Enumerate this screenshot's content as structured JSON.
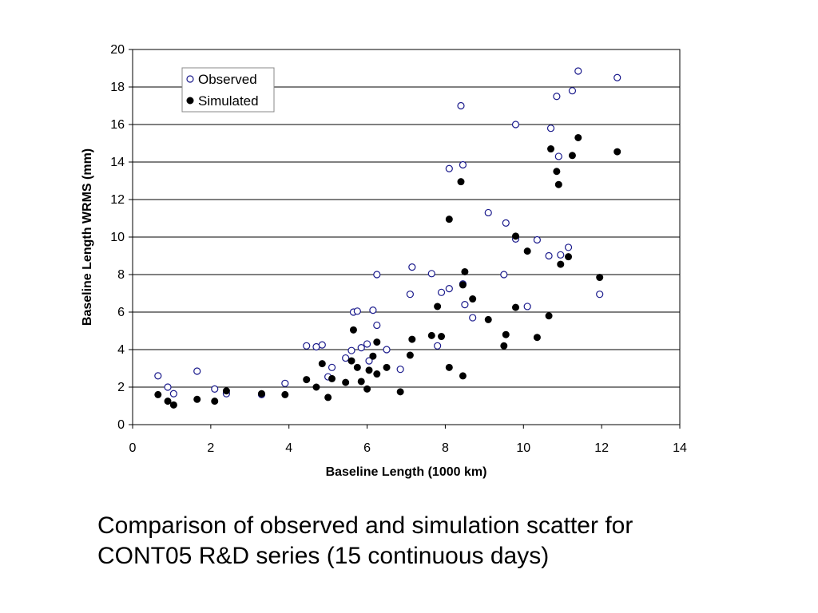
{
  "caption": {
    "line1": "Comparison of observed and simulation scatter for",
    "line2": "CONT05 R&D series (15 continuous days)"
  },
  "colors": {
    "observed": "#1a1a8c",
    "simulated": "#000000",
    "grid": "#000000"
  },
  "chart_data": {
    "type": "scatter",
    "title": "",
    "xlabel": "Baseline Length (1000 km)",
    "ylabel": "Baseline Length WRMS (mm)",
    "xlim": [
      0,
      14
    ],
    "ylim": [
      0,
      20
    ],
    "xticks": [
      0,
      2,
      4,
      6,
      8,
      10,
      12,
      14
    ],
    "yticks": [
      0,
      2,
      4,
      6,
      8,
      10,
      12,
      14,
      16,
      18,
      20
    ],
    "grid": "horizontal",
    "legend": "top-left",
    "series": [
      {
        "name": "Observed",
        "marker": "open-circle",
        "points": [
          [
            0.65,
            2.6
          ],
          [
            0.9,
            2.0
          ],
          [
            1.05,
            1.65
          ],
          [
            1.65,
            2.85
          ],
          [
            2.1,
            1.9
          ],
          [
            2.4,
            1.65
          ],
          [
            3.3,
            1.6
          ],
          [
            3.9,
            2.2
          ],
          [
            4.45,
            4.2
          ],
          [
            4.7,
            4.15
          ],
          [
            4.85,
            4.25
          ],
          [
            5.0,
            2.55
          ],
          [
            5.1,
            3.05
          ],
          [
            5.45,
            3.55
          ],
          [
            5.6,
            3.95
          ],
          [
            5.65,
            6.0
          ],
          [
            5.75,
            6.05
          ],
          [
            5.85,
            4.1
          ],
          [
            6.0,
            4.3
          ],
          [
            6.05,
            3.4
          ],
          [
            6.15,
            6.1
          ],
          [
            6.25,
            8.0
          ],
          [
            6.25,
            5.3
          ],
          [
            6.5,
            4.0
          ],
          [
            6.85,
            2.95
          ],
          [
            7.1,
            6.95
          ],
          [
            7.15,
            8.4
          ],
          [
            7.65,
            8.05
          ],
          [
            7.8,
            4.2
          ],
          [
            7.9,
            7.05
          ],
          [
            8.1,
            7.25
          ],
          [
            8.1,
            13.65
          ],
          [
            8.4,
            17.0
          ],
          [
            8.45,
            13.85
          ],
          [
            8.45,
            7.5
          ],
          [
            8.5,
            6.4
          ],
          [
            8.7,
            5.7
          ],
          [
            9.1,
            11.3
          ],
          [
            9.5,
            8.0
          ],
          [
            9.55,
            10.75
          ],
          [
            9.8,
            9.9
          ],
          [
            9.8,
            16.0
          ],
          [
            10.1,
            6.3
          ],
          [
            10.35,
            9.85
          ],
          [
            10.65,
            9.0
          ],
          [
            10.7,
            15.8
          ],
          [
            10.85,
            17.5
          ],
          [
            10.9,
            14.3
          ],
          [
            10.95,
            9.05
          ],
          [
            11.15,
            9.45
          ],
          [
            11.25,
            17.8
          ],
          [
            11.4,
            18.85
          ],
          [
            11.95,
            6.95
          ],
          [
            12.4,
            18.5
          ]
        ]
      },
      {
        "name": "Simulated",
        "marker": "filled-circle",
        "points": [
          [
            0.65,
            1.6
          ],
          [
            0.9,
            1.25
          ],
          [
            1.05,
            1.05
          ],
          [
            1.65,
            1.35
          ],
          [
            2.1,
            1.25
          ],
          [
            2.4,
            1.8
          ],
          [
            3.3,
            1.65
          ],
          [
            3.9,
            1.6
          ],
          [
            4.45,
            2.4
          ],
          [
            4.7,
            2.0
          ],
          [
            4.85,
            3.25
          ],
          [
            5.0,
            1.45
          ],
          [
            5.1,
            2.45
          ],
          [
            5.45,
            2.25
          ],
          [
            5.6,
            3.4
          ],
          [
            5.65,
            5.05
          ],
          [
            5.75,
            3.05
          ],
          [
            5.85,
            2.3
          ],
          [
            6.0,
            1.9
          ],
          [
            6.05,
            2.9
          ],
          [
            6.15,
            3.65
          ],
          [
            6.25,
            4.4
          ],
          [
            6.25,
            2.7
          ],
          [
            6.5,
            3.05
          ],
          [
            6.85,
            1.75
          ],
          [
            7.1,
            3.7
          ],
          [
            7.15,
            4.55
          ],
          [
            7.65,
            4.75
          ],
          [
            7.8,
            6.3
          ],
          [
            7.9,
            4.7
          ],
          [
            8.1,
            3.05
          ],
          [
            8.1,
            10.95
          ],
          [
            8.4,
            12.95
          ],
          [
            8.45,
            7.45
          ],
          [
            8.45,
            2.6
          ],
          [
            8.5,
            8.15
          ],
          [
            8.7,
            6.7
          ],
          [
            9.1,
            5.6
          ],
          [
            9.5,
            4.2
          ],
          [
            9.55,
            4.8
          ],
          [
            9.8,
            6.25
          ],
          [
            9.8,
            10.05
          ],
          [
            10.1,
            9.25
          ],
          [
            10.35,
            4.65
          ],
          [
            10.65,
            5.8
          ],
          [
            10.7,
            14.7
          ],
          [
            10.85,
            13.5
          ],
          [
            10.9,
            12.8
          ],
          [
            10.95,
            8.55
          ],
          [
            11.15,
            8.95
          ],
          [
            11.25,
            14.35
          ],
          [
            11.4,
            15.3
          ],
          [
            11.95,
            7.85
          ],
          [
            12.4,
            14.55
          ]
        ]
      }
    ]
  }
}
